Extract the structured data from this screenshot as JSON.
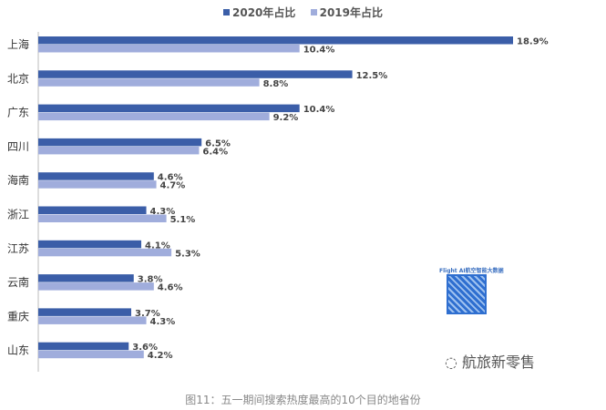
{
  "chart_data": {
    "type": "bar",
    "orientation": "horizontal",
    "title": "",
    "categories": [
      "上海",
      "北京",
      "广东",
      "四川",
      "海南",
      "浙江",
      "江苏",
      "云南",
      "重庆",
      "山东"
    ],
    "series": [
      {
        "name": "2020年占比",
        "color": "#3b5ea8",
        "values": [
          18.9,
          12.5,
          10.4,
          6.5,
          4.6,
          4.3,
          4.1,
          3.8,
          3.7,
          3.6
        ]
      },
      {
        "name": "2019年占比",
        "color": "#a0addc",
        "values": [
          10.4,
          8.8,
          9.2,
          6.4,
          4.7,
          5.1,
          5.3,
          4.6,
          4.3,
          4.2
        ]
      }
    ],
    "value_suffix": "%",
    "xlim": [
      0,
      20
    ],
    "legend_position": "top-center",
    "grid": false
  },
  "caption": "图11：五一期间搜索热度最高的10个目的地省份",
  "watermark": {
    "qr_title": "Flight AI航空智能大数据",
    "qr_subtitle": "",
    "account": "航旅新零售"
  }
}
